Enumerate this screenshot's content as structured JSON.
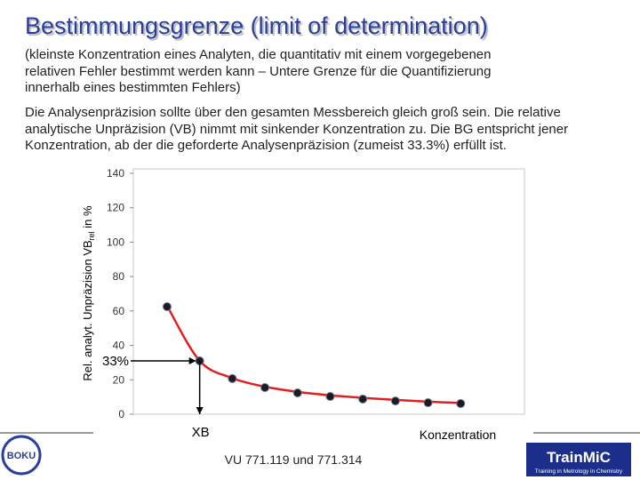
{
  "chart_data": {
    "type": "scatter",
    "title": "Bestimmungsgrenze (limit of determination)",
    "subtitle_lines": [
      "(kleinste Konzentration eines Analyten, die quantitativ mit einem vorgegebenen",
      "relativen Fehler bestimmt werden kann – Untere Grenze für die Quantifizierung",
      "innerhalb eines bestimmten Fehlers)"
    ],
    "text_lines": [
      "Die Analysenpräzision sollte über den gesamten Messbereich gleich groß sein. Die relative",
      "analytische Unpräzision (VB) nimmt mit sinkender Konzentration zu. Die BG entspricht jener",
      "Konzentration, ab der die geforderte Analysenpräzision (zumeist 33.3%) erfüllt ist."
    ],
    "y_label": {
      "text": "Rel. analyt. Unpräzision VB",
      "subscript": "rel",
      "suffix": " in %"
    },
    "x_label": "Konzentration",
    "annotations": {
      "limit": "33%",
      "xb": "XB"
    },
    "categories": [
      null,
      null,
      null,
      null,
      null,
      null,
      null,
      null,
      null,
      null
    ],
    "series": [
      {
        "color": "#e02020",
        "style": "line",
        "values": [
          63,
          31,
          21,
          16,
          13,
          11,
          9.5,
          8.3,
          7.3,
          6.5
        ]
      },
      {
        "color": "#1a1a2e",
        "style": "marker",
        "values": [
          62.5,
          31,
          20.7,
          15.5,
          12.4,
          10.3,
          8.8,
          7.7,
          6.7,
          6.2
        ]
      }
    ],
    "ylim": [
      0,
      140
    ],
    "yticks": [
      0,
      20,
      40,
      60,
      80,
      100,
      120,
      140
    ],
    "grid": false
  },
  "footer": {
    "course": "VU 771.119 und 771.314",
    "logo_left": "BOKU",
    "logo_right": "TrainMiC",
    "logo_right_tagline": "Training in Metrology in Chemistry"
  }
}
